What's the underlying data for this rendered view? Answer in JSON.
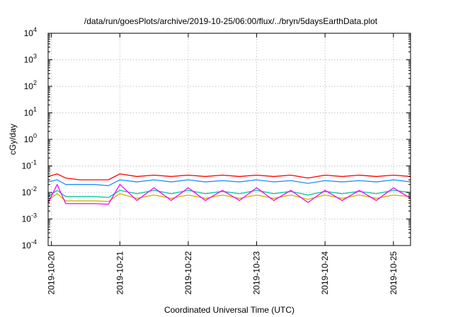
{
  "chart_data": {
    "type": "line",
    "title": "/data/run/goesPlots/archive/2019-10-25/06:00/flux/../bryn/5daysEarthData.plot",
    "xlabel": "Coordinated Universal Time (UTC)",
    "ylabel": "cGy/day",
    "xlim": [
      "2019-10-19T22:50",
      "2019-10-25T06:00"
    ],
    "x_ticks": [
      "2019-10-20",
      "2019-10-21",
      "2019-10-22",
      "2019-10-23",
      "2019-10-24",
      "2019-10-25"
    ],
    "ylim": [
      0.0001,
      10000
    ],
    "y_scale": "log",
    "y_ticks": [
      {
        "base": "10",
        "exp": "-4"
      },
      {
        "base": "10",
        "exp": "-3"
      },
      {
        "base": "10",
        "exp": "-2"
      },
      {
        "base": "10",
        "exp": "-1"
      },
      {
        "base": "10",
        "exp": "0"
      },
      {
        "base": "10",
        "exp": "1"
      },
      {
        "base": "10",
        "exp": "2"
      },
      {
        "base": "10",
        "exp": "3"
      },
      {
        "base": "10",
        "exp": "4"
      }
    ],
    "grid": true,
    "series": [
      {
        "color": "#ff0000",
        "values": [
          [
            "2019-10-19T22:50",
            0.04
          ],
          [
            "2019-10-20T02:00",
            0.05
          ],
          [
            "2019-10-20T05:00",
            0.035
          ],
          [
            "2019-10-20T10:00",
            0.03
          ],
          [
            "2019-10-20T15:00",
            0.03
          ],
          [
            "2019-10-20T20:00",
            0.03
          ],
          [
            "2019-10-21T00:00",
            0.05
          ],
          [
            "2019-10-21T06:00",
            0.04
          ],
          [
            "2019-10-21T12:00",
            0.045
          ],
          [
            "2019-10-21T18:00",
            0.04
          ],
          [
            "2019-10-22T00:00",
            0.045
          ],
          [
            "2019-10-22T06:00",
            0.04
          ],
          [
            "2019-10-22T12:00",
            0.045
          ],
          [
            "2019-10-22T18:00",
            0.04
          ],
          [
            "2019-10-23T00:00",
            0.045
          ],
          [
            "2019-10-23T06:00",
            0.04
          ],
          [
            "2019-10-23T12:00",
            0.045
          ],
          [
            "2019-10-23T18:00",
            0.035
          ],
          [
            "2019-10-24T00:00",
            0.045
          ],
          [
            "2019-10-24T06:00",
            0.04
          ],
          [
            "2019-10-24T12:00",
            0.045
          ],
          [
            "2019-10-24T18:00",
            0.04
          ],
          [
            "2019-10-25T00:00",
            0.045
          ],
          [
            "2019-10-25T06:00",
            0.04
          ]
        ]
      },
      {
        "color": "#1e90ff",
        "values": [
          [
            "2019-10-19T22:50",
            0.025
          ],
          [
            "2019-10-20T02:00",
            0.03
          ],
          [
            "2019-10-20T05:00",
            0.02
          ],
          [
            "2019-10-20T10:00",
            0.02
          ],
          [
            "2019-10-20T15:00",
            0.02
          ],
          [
            "2019-10-20T20:00",
            0.018
          ],
          [
            "2019-10-21T00:00",
            0.03
          ],
          [
            "2019-10-21T06:00",
            0.025
          ],
          [
            "2019-10-21T12:00",
            0.03
          ],
          [
            "2019-10-21T18:00",
            0.025
          ],
          [
            "2019-10-22T00:00",
            0.03
          ],
          [
            "2019-10-22T06:00",
            0.025
          ],
          [
            "2019-10-22T12:00",
            0.028
          ],
          [
            "2019-10-22T18:00",
            0.025
          ],
          [
            "2019-10-23T00:00",
            0.03
          ],
          [
            "2019-10-23T06:00",
            0.025
          ],
          [
            "2019-10-23T12:00",
            0.028
          ],
          [
            "2019-10-23T18:00",
            0.022
          ],
          [
            "2019-10-24T00:00",
            0.028
          ],
          [
            "2019-10-24T06:00",
            0.025
          ],
          [
            "2019-10-24T12:00",
            0.028
          ],
          [
            "2019-10-24T18:00",
            0.025
          ],
          [
            "2019-10-25T00:00",
            0.03
          ],
          [
            "2019-10-25T06:00",
            0.025
          ]
        ]
      },
      {
        "color": "#00c8a0",
        "values": [
          [
            "2019-10-19T22:50",
            0.007
          ],
          [
            "2019-10-20T02:00",
            0.012
          ],
          [
            "2019-10-20T05:00",
            0.007
          ],
          [
            "2019-10-20T10:00",
            0.007
          ],
          [
            "2019-10-20T15:00",
            0.007
          ],
          [
            "2019-10-20T20:00",
            0.0065
          ],
          [
            "2019-10-21T00:00",
            0.012
          ],
          [
            "2019-10-21T06:00",
            0.009
          ],
          [
            "2019-10-21T12:00",
            0.012
          ],
          [
            "2019-10-21T18:00",
            0.009
          ],
          [
            "2019-10-22T00:00",
            0.012
          ],
          [
            "2019-10-22T06:00",
            0.009
          ],
          [
            "2019-10-22T12:00",
            0.011
          ],
          [
            "2019-10-22T18:00",
            0.009
          ],
          [
            "2019-10-23T00:00",
            0.012
          ],
          [
            "2019-10-23T06:00",
            0.009
          ],
          [
            "2019-10-23T12:00",
            0.011
          ],
          [
            "2019-10-23T18:00",
            0.008
          ],
          [
            "2019-10-24T00:00",
            0.011
          ],
          [
            "2019-10-24T06:00",
            0.009
          ],
          [
            "2019-10-24T12:00",
            0.011
          ],
          [
            "2019-10-24T18:00",
            0.009
          ],
          [
            "2019-10-25T00:00",
            0.012
          ],
          [
            "2019-10-25T06:00",
            0.01
          ]
        ]
      },
      {
        "color": "#c8b400",
        "values": [
          [
            "2019-10-19T22:50",
            0.005
          ],
          [
            "2019-10-20T02:00",
            0.009
          ],
          [
            "2019-10-20T05:00",
            0.0048
          ],
          [
            "2019-10-20T10:00",
            0.0048
          ],
          [
            "2019-10-20T15:00",
            0.0048
          ],
          [
            "2019-10-20T20:00",
            0.0046
          ],
          [
            "2019-10-21T00:00",
            0.009
          ],
          [
            "2019-10-21T06:00",
            0.006
          ],
          [
            "2019-10-21T12:00",
            0.008
          ],
          [
            "2019-10-21T18:00",
            0.006
          ],
          [
            "2019-10-22T00:00",
            0.008
          ],
          [
            "2019-10-22T06:00",
            0.006
          ],
          [
            "2019-10-22T12:00",
            0.008
          ],
          [
            "2019-10-22T18:00",
            0.006
          ],
          [
            "2019-10-23T00:00",
            0.008
          ],
          [
            "2019-10-23T06:00",
            0.006
          ],
          [
            "2019-10-23T12:00",
            0.008
          ],
          [
            "2019-10-23T18:00",
            0.0055
          ],
          [
            "2019-10-24T00:00",
            0.008
          ],
          [
            "2019-10-24T06:00",
            0.006
          ],
          [
            "2019-10-24T12:00",
            0.008
          ],
          [
            "2019-10-24T18:00",
            0.006
          ],
          [
            "2019-10-25T00:00",
            0.008
          ],
          [
            "2019-10-25T06:00",
            0.007
          ]
        ]
      },
      {
        "color": "#ff00ff",
        "values": [
          [
            "2019-10-19T22:50",
            0.004
          ],
          [
            "2019-10-20T02:00",
            0.02
          ],
          [
            "2019-10-20T05:00",
            0.0038
          ],
          [
            "2019-10-20T10:00",
            0.0038
          ],
          [
            "2019-10-20T15:00",
            0.0038
          ],
          [
            "2019-10-20T20:00",
            0.0036
          ],
          [
            "2019-10-21T00:00",
            0.02
          ],
          [
            "2019-10-21T06:00",
            0.005
          ],
          [
            "2019-10-21T12:00",
            0.015
          ],
          [
            "2019-10-21T18:00",
            0.005
          ],
          [
            "2019-10-22T00:00",
            0.015
          ],
          [
            "2019-10-22T06:00",
            0.005
          ],
          [
            "2019-10-22T12:00",
            0.012
          ],
          [
            "2019-10-22T18:00",
            0.005
          ],
          [
            "2019-10-23T00:00",
            0.015
          ],
          [
            "2019-10-23T06:00",
            0.005
          ],
          [
            "2019-10-23T12:00",
            0.012
          ],
          [
            "2019-10-23T18:00",
            0.0042
          ],
          [
            "2019-10-24T00:00",
            0.012
          ],
          [
            "2019-10-24T06:00",
            0.005
          ],
          [
            "2019-10-24T12:00",
            0.012
          ],
          [
            "2019-10-24T18:00",
            0.005
          ],
          [
            "2019-10-25T00:00",
            0.015
          ],
          [
            "2019-10-25T06:00",
            0.006
          ]
        ]
      }
    ]
  }
}
